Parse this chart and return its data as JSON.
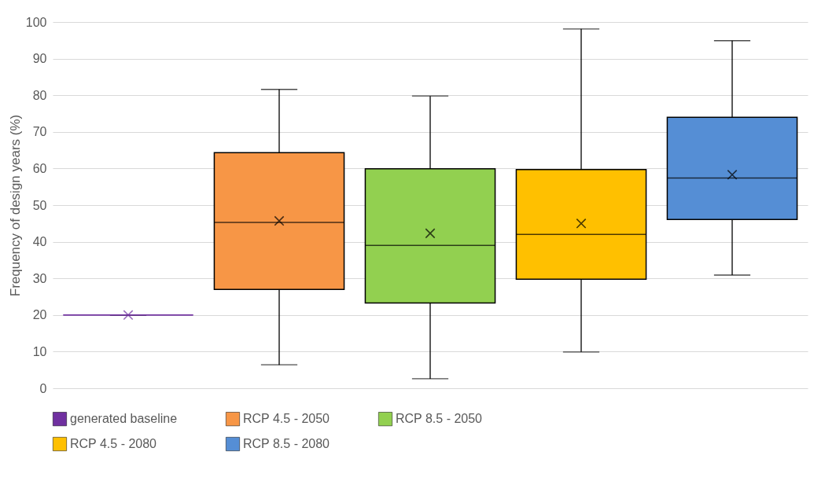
{
  "chart_data": {
    "type": "box",
    "ylabel": "Frequency of design years (%)",
    "categories": [
      null,
      null,
      null,
      null,
      null
    ],
    "ylim": [
      0,
      100
    ],
    "yticks": [
      0,
      10,
      20,
      30,
      40,
      50,
      60,
      70,
      80,
      90,
      100
    ],
    "grid": "y",
    "legend": "bottom",
    "marker": "cross",
    "series": [
      {
        "name": "generated baseline",
        "color": "#7030a0",
        "boxes": [
          {
            "low": 20,
            "q1": 20,
            "median": 20,
            "q3": 20,
            "high": 20,
            "mean": 20
          },
          null,
          null,
          null,
          null
        ]
      },
      {
        "name": "RCP 4.5 - 2050",
        "color": "#f79646",
        "boxes": [
          null,
          {
            "low": 6.4,
            "q1": 27,
            "median": 45.3,
            "q3": 64.3,
            "high": 81.6,
            "mean": 45.7
          },
          null,
          null,
          null
        ]
      },
      {
        "name": "RCP 8.5 - 2050",
        "color": "#92d050",
        "boxes": [
          null,
          null,
          {
            "low": 2.6,
            "q1": 23.3,
            "median": 39,
            "q3": 59.9,
            "high": 79.8,
            "mean": 42.3
          },
          null,
          null
        ]
      },
      {
        "name": "RCP 4.5 - 2080",
        "color": "#ffc000",
        "boxes": [
          null,
          null,
          null,
          {
            "low": 9.9,
            "q1": 29.8,
            "median": 42,
            "q3": 59.7,
            "high": 98.1,
            "mean": 45
          },
          null
        ]
      },
      {
        "name": "RCP 8.5 - 2080",
        "color": "#558ed5",
        "boxes": [
          null,
          null,
          null,
          null,
          {
            "low": 30.9,
            "q1": 46.1,
            "median": 57.4,
            "q3": 74,
            "high": 94.9,
            "mean": 58.3
          }
        ]
      }
    ]
  }
}
